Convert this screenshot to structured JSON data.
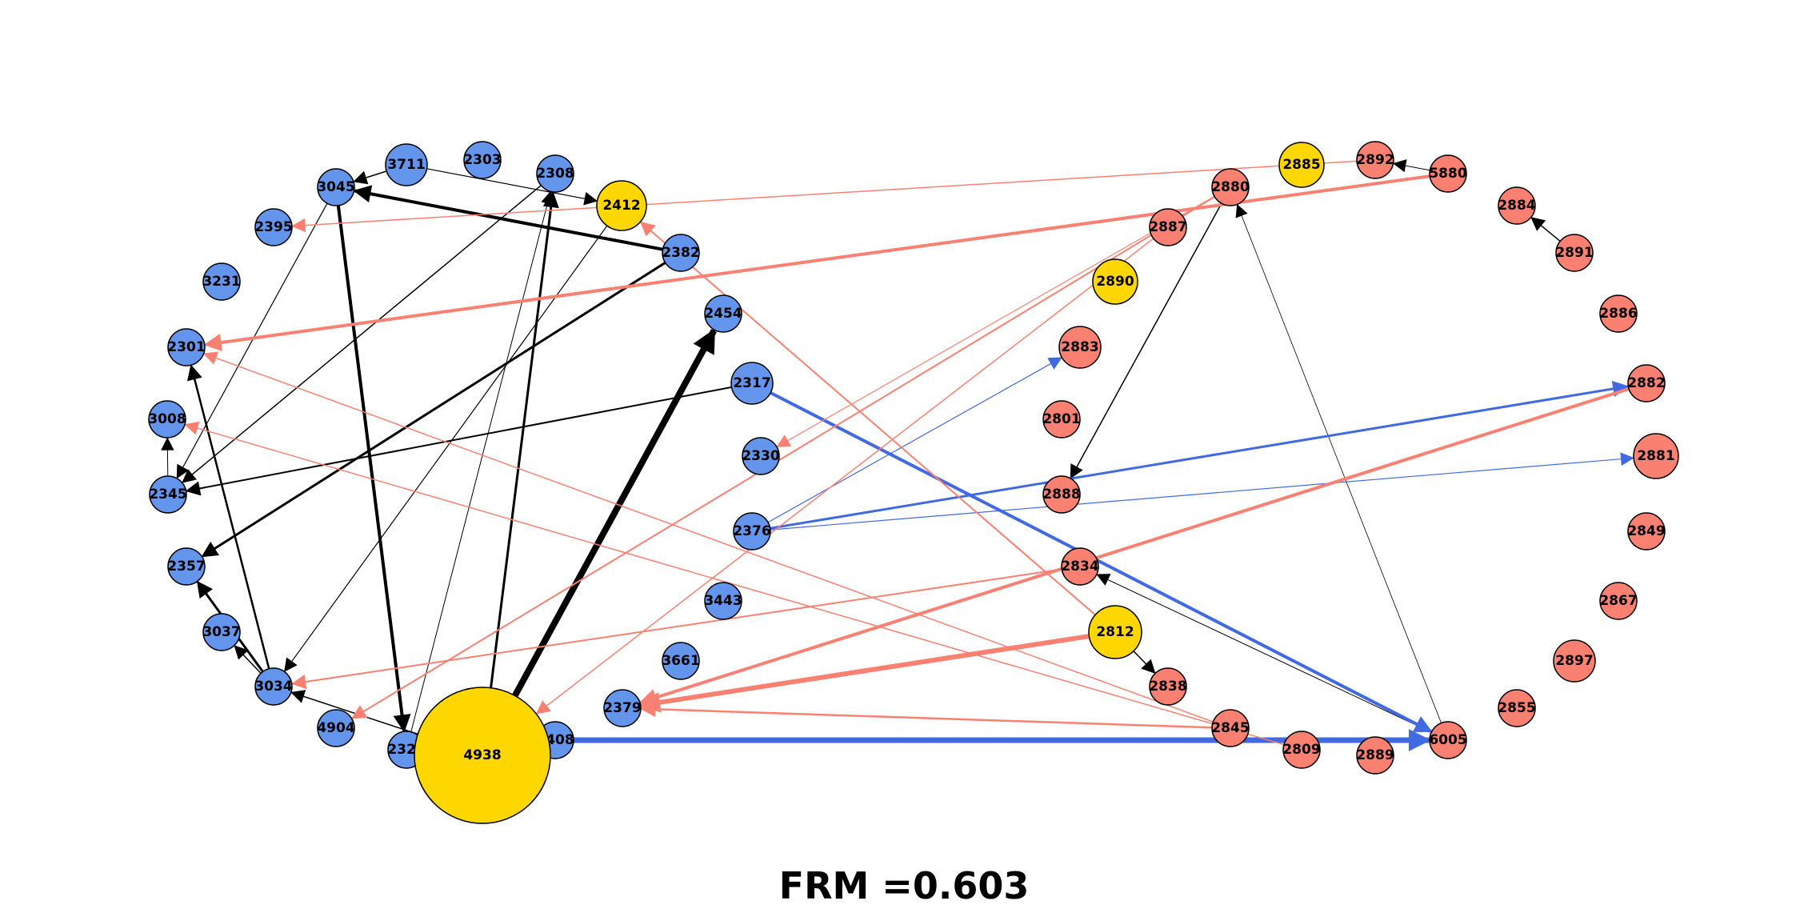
{
  "caption": "FRM =0.603",
  "colors": {
    "blue_node": "#6495ED",
    "salmon_node": "#FA8072",
    "gold_node": "#FFD700",
    "black_edge": "#000000",
    "blue_edge": "#4169E1",
    "salmon_edge": "#FA8072"
  },
  "nodes": [
    {
      "id": "3711",
      "group": "blue"
    },
    {
      "id": "2303",
      "group": "blue"
    },
    {
      "id": "3045",
      "group": "blue"
    },
    {
      "id": "2308",
      "group": "blue"
    },
    {
      "id": "2412",
      "group": "gold"
    },
    {
      "id": "2395",
      "group": "blue"
    },
    {
      "id": "2382",
      "group": "blue"
    },
    {
      "id": "3231",
      "group": "blue"
    },
    {
      "id": "2454",
      "group": "blue"
    },
    {
      "id": "2301",
      "group": "blue"
    },
    {
      "id": "2317",
      "group": "blue"
    },
    {
      "id": "3008",
      "group": "blue"
    },
    {
      "id": "2330",
      "group": "blue"
    },
    {
      "id": "2345",
      "group": "blue"
    },
    {
      "id": "2376",
      "group": "blue"
    },
    {
      "id": "2357",
      "group": "blue"
    },
    {
      "id": "3443",
      "group": "blue"
    },
    {
      "id": "3037",
      "group": "blue"
    },
    {
      "id": "3661",
      "group": "blue"
    },
    {
      "id": "3034",
      "group": "blue"
    },
    {
      "id": "2379",
      "group": "blue"
    },
    {
      "id": "4904",
      "group": "blue"
    },
    {
      "id": "2408",
      "group": "blue"
    },
    {
      "id": "2327",
      "group": "blue"
    },
    {
      "id": "4938",
      "group": "gold"
    },
    {
      "id": "2885",
      "group": "gold"
    },
    {
      "id": "2892",
      "group": "salmon"
    },
    {
      "id": "2880",
      "group": "salmon"
    },
    {
      "id": "5880",
      "group": "salmon"
    },
    {
      "id": "2884",
      "group": "salmon"
    },
    {
      "id": "2887",
      "group": "salmon"
    },
    {
      "id": "2891",
      "group": "salmon"
    },
    {
      "id": "2890",
      "group": "gold"
    },
    {
      "id": "2886",
      "group": "salmon"
    },
    {
      "id": "2883",
      "group": "salmon"
    },
    {
      "id": "2882",
      "group": "salmon"
    },
    {
      "id": "2801",
      "group": "salmon"
    },
    {
      "id": "2881",
      "group": "salmon"
    },
    {
      "id": "2888",
      "group": "salmon"
    },
    {
      "id": "2849",
      "group": "salmon"
    },
    {
      "id": "2834",
      "group": "salmon"
    },
    {
      "id": "2867",
      "group": "salmon"
    },
    {
      "id": "2812",
      "group": "gold"
    },
    {
      "id": "2897",
      "group": "salmon"
    },
    {
      "id": "2838",
      "group": "salmon"
    },
    {
      "id": "2855",
      "group": "salmon"
    },
    {
      "id": "2845",
      "group": "salmon"
    },
    {
      "id": "6005",
      "group": "salmon"
    },
    {
      "id": "2809",
      "group": "salmon"
    },
    {
      "id": "2889",
      "group": "salmon"
    }
  ],
  "edges": [
    {
      "from": "2382",
      "to": "3045",
      "color": "black",
      "weight": 4
    },
    {
      "from": "3711",
      "to": "3045",
      "color": "black",
      "weight": 1.5
    },
    {
      "from": "3711",
      "to": "2412",
      "color": "black",
      "weight": 1.2
    },
    {
      "from": "3045",
      "to": "2327",
      "color": "black",
      "weight": 4
    },
    {
      "from": "2308",
      "to": "2345",
      "color": "black",
      "weight": 1.5
    },
    {
      "from": "3045",
      "to": "2345",
      "color": "black",
      "weight": 1.2
    },
    {
      "from": "2382",
      "to": "2357",
      "color": "black",
      "weight": 3
    },
    {
      "from": "4938",
      "to": "2308",
      "color": "black",
      "weight": 3
    },
    {
      "from": "2412",
      "to": "3034",
      "color": "black",
      "weight": 1.2
    },
    {
      "from": "2327",
      "to": "2308",
      "color": "black",
      "weight": 1
    },
    {
      "from": "4938",
      "to": "2454",
      "color": "black",
      "weight": 8
    },
    {
      "from": "2317",
      "to": "2345",
      "color": "black",
      "weight": 2
    },
    {
      "from": "2345",
      "to": "3008",
      "color": "black",
      "weight": 1
    },
    {
      "from": "3034",
      "to": "2301",
      "color": "black",
      "weight": 2.5
    },
    {
      "from": "3034",
      "to": "2357",
      "color": "black",
      "weight": 3
    },
    {
      "from": "3034",
      "to": "3037",
      "color": "black",
      "weight": 1.5
    },
    {
      "from": "4938",
      "to": "3034",
      "color": "black",
      "weight": 1.5
    },
    {
      "from": "2880",
      "to": "2888",
      "color": "black",
      "weight": 1.5
    },
    {
      "from": "5880",
      "to": "2892",
      "color": "black",
      "weight": 1
    },
    {
      "from": "2891",
      "to": "2884",
      "color": "black",
      "weight": 1.5
    },
    {
      "from": "6005",
      "to": "2880",
      "color": "black",
      "weight": 0.8
    },
    {
      "from": "6005",
      "to": "2834",
      "color": "black",
      "weight": 1
    },
    {
      "from": "2812",
      "to": "2838",
      "color": "black",
      "weight": 1.5
    },
    {
      "from": "2408",
      "to": "6005",
      "color": "blue",
      "weight": 7
    },
    {
      "from": "2317",
      "to": "6005",
      "color": "blue",
      "weight": 4
    },
    {
      "from": "2376",
      "to": "2882",
      "color": "blue",
      "weight": 3
    },
    {
      "from": "2376",
      "to": "2881",
      "color": "blue",
      "weight": 1.2
    },
    {
      "from": "2376",
      "to": "2883",
      "color": "blue",
      "weight": 1.2
    },
    {
      "from": "5880",
      "to": "2301",
      "color": "salmon",
      "weight": 4
    },
    {
      "from": "2892",
      "to": "2395",
      "color": "salmon",
      "weight": 1.5
    },
    {
      "from": "2812",
      "to": "2412",
      "color": "salmon",
      "weight": 2
    },
    {
      "from": "2880",
      "to": "2330",
      "color": "salmon",
      "weight": 1.2
    },
    {
      "from": "2880",
      "to": "4904",
      "color": "salmon",
      "weight": 2
    },
    {
      "from": "2845",
      "to": "2301",
      "color": "salmon",
      "weight": 1.5
    },
    {
      "from": "2809",
      "to": "3008",
      "color": "salmon",
      "weight": 1.5
    },
    {
      "from": "2834",
      "to": "3034",
      "color": "salmon",
      "weight": 2
    },
    {
      "from": "2812",
      "to": "2379",
      "color": "salmon",
      "weight": 6
    },
    {
      "from": "2882",
      "to": "2379",
      "color": "salmon",
      "weight": 4
    },
    {
      "from": "2845",
      "to": "2379",
      "color": "salmon",
      "weight": 2.5
    },
    {
      "from": "2887",
      "to": "4938",
      "color": "salmon",
      "weight": 1.5
    }
  ]
}
